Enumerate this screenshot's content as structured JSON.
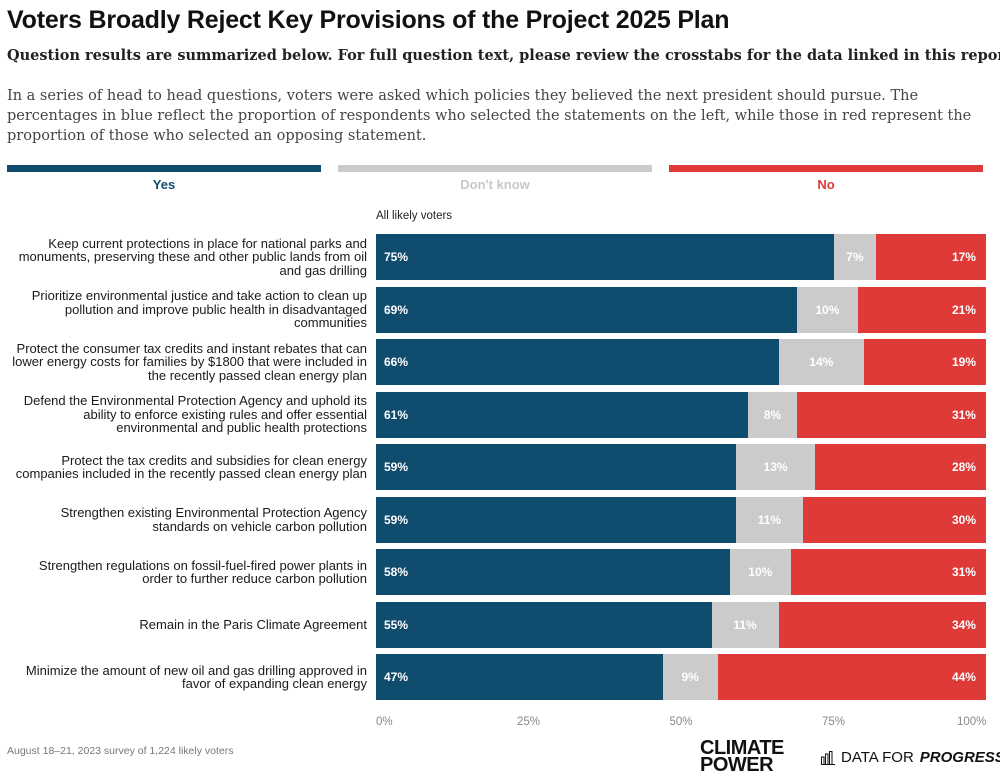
{
  "title": "Voters Broadly Reject Key Provisions of the Project 2025 Plan",
  "subtitle": "Question results are summarized below. For full question text, please review the crosstabs for the data linked in this report.",
  "description": "In a series of head to head questions, voters were asked which policies they believed the next president should pursue. The percentages in blue reflect the proportion of respondents who selected the statements on the left, while those in red represent the proportion of those who selected an opposing statement.",
  "footnote": "August 18–21, 2023 survey of 1,224 likely voters",
  "logos": {
    "climate_power_line1": "CLIMATE",
    "climate_power_line2": "POWER",
    "dfp_prefix": "DATA FOR",
    "dfp_suffix": "PROGRESS"
  },
  "colors": {
    "yes": "#0f4c6e",
    "dont_know": "#cccbcc",
    "no": "#e03a38"
  },
  "chart_data": {
    "type": "bar",
    "orientation": "horizontal-stacked-100",
    "column_header": "All likely voters",
    "legend": [
      "Yes",
      "Don't know",
      "No"
    ],
    "categories": [
      "Keep current protections in place for national parks and monuments, preserving these and other public lands from oil and gas drilling",
      "Prioritize environmental justice and take action to clean up pollution and improve public health in disadvantaged communities",
      "Protect the consumer tax credits and instant rebates that can lower energy costs for families by $1800 that were included in the recently passed clean energy plan",
      "Defend the Environmental Protection Agency and uphold its ability to enforce existing rules and offer essential environmental and public health protections",
      "Protect the tax credits and subsidies for clean energy companies included in the recently passed clean energy plan",
      "Strengthen existing Environmental Protection Agency standards on vehicle carbon pollution",
      "Strengthen regulations on fossil-fuel-fired power plants in order to further reduce carbon pollution",
      "Remain in the Paris Climate Agreement",
      "Minimize the amount of new oil and gas drilling approved in favor of expanding clean energy"
    ],
    "series": [
      {
        "name": "Yes",
        "values": [
          75,
          69,
          66,
          61,
          59,
          59,
          58,
          55,
          47
        ]
      },
      {
        "name": "Don't know",
        "values": [
          7,
          10,
          14,
          8,
          13,
          11,
          10,
          11,
          9
        ]
      },
      {
        "name": "No",
        "values": [
          17,
          21,
          19,
          31,
          28,
          30,
          31,
          34,
          44
        ]
      }
    ],
    "value_labels": {
      "Yes": [
        "75%",
        "69%",
        "66%",
        "61%",
        "59%",
        "59%",
        "58%",
        "55%",
        "47%"
      ],
      "Don't know": [
        "7%",
        "10%",
        "14%",
        "8%",
        "13%",
        "11%",
        "10%",
        "11%",
        "9%"
      ],
      "No": [
        "17%",
        "21%",
        "19%",
        "31%",
        "28%",
        "30%",
        "31%",
        "34%",
        "44%"
      ]
    },
    "xlim": [
      0,
      100
    ],
    "x_ticks": [
      "0%",
      "25%",
      "50%",
      "75%",
      "100%"
    ]
  }
}
